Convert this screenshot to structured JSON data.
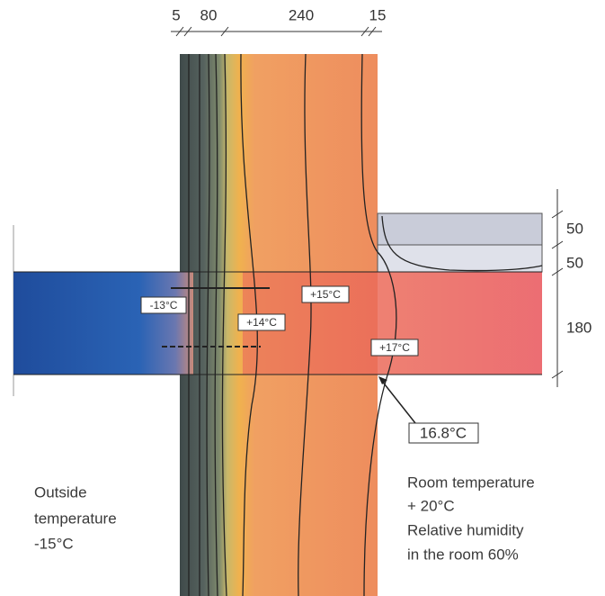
{
  "dimensions": {
    "top": [
      "5",
      "80",
      "240",
      "15"
    ],
    "right": [
      "50",
      "50",
      "180"
    ]
  },
  "temperatures": [
    "-13°C",
    "+14°C",
    "+15°C",
    "+17°C"
  ],
  "callout": "16.8°C",
  "outside": [
    "Outside",
    "temperature",
    "-15°C"
  ],
  "room": [
    "Room temperature",
    "+ 20°C",
    "Relative humidity",
    "in the room 60%"
  ]
}
